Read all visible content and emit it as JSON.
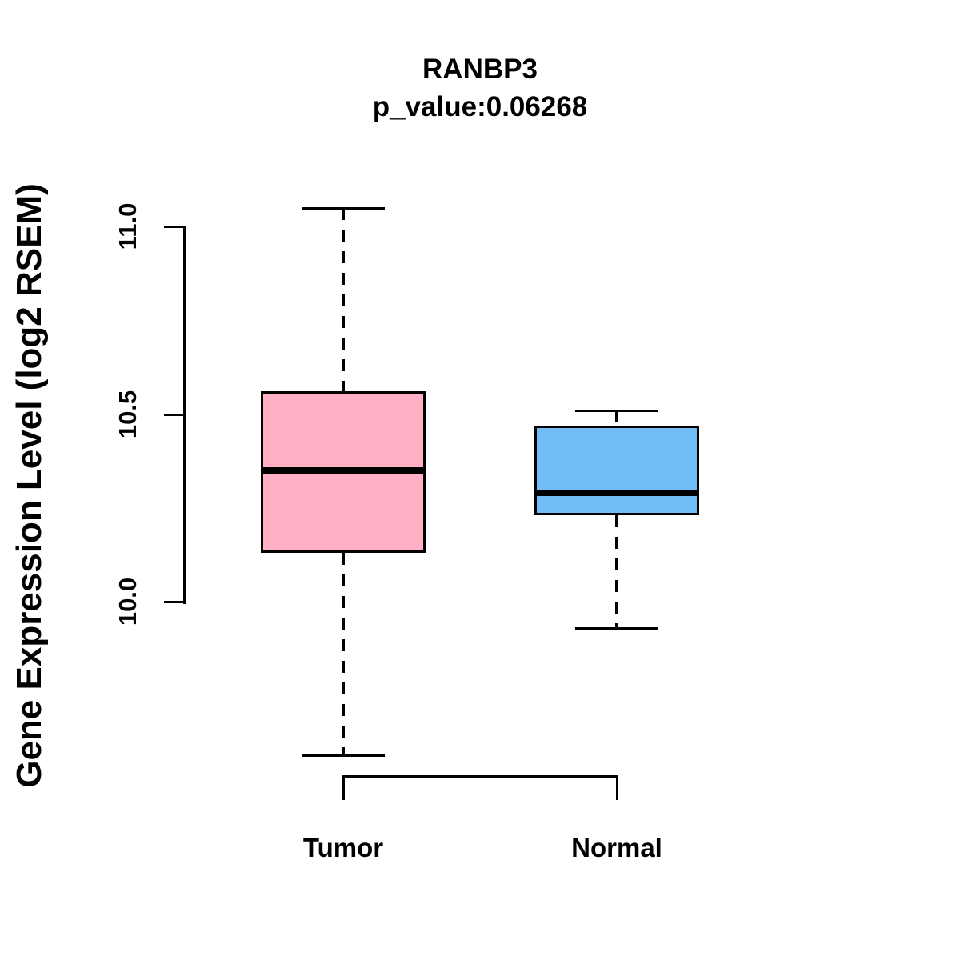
{
  "figure": {
    "title": "RANBP3",
    "subtitle": "p_value:0.06268"
  },
  "axes": {
    "y_label": "Gene Expression Level (log2 RSEM)",
    "y_ticks": [
      {
        "label": "11.0",
        "value": 11.0
      },
      {
        "label": "10.5",
        "value": 10.5
      },
      {
        "label": "10.0",
        "value": 10.0
      }
    ]
  },
  "chart_data": {
    "type": "boxplot",
    "title": "RANBP3",
    "subtitle": "p_value:0.06268",
    "gene": "RANBP3",
    "p_value": 0.06268,
    "ylabel": "Gene Expression Level (log2 RSEM)",
    "ylim": [
      9.45,
      11.15
    ],
    "y_tick_values": [
      10.0,
      10.5,
      11.0
    ],
    "grid": false,
    "legend_position": "none",
    "categories": [
      "Tumor",
      "Normal"
    ],
    "series": [
      {
        "name": "Tumor",
        "color": "#FFB0C4",
        "lower_whisker": 9.59,
        "q1": 10.13,
        "median": 10.35,
        "q3": 10.56,
        "upper_whisker": 11.05
      },
      {
        "name": "Normal",
        "color": "#73BDF6",
        "lower_whisker": 9.93,
        "q1": 10.23,
        "median": 10.29,
        "q3": 10.47,
        "upper_whisker": 10.51
      }
    ]
  },
  "colors": {
    "tumor_fill": "#FFB0C4",
    "normal_fill": "#73BDF6",
    "line": "#000000",
    "background": "#FFFFFF"
  }
}
